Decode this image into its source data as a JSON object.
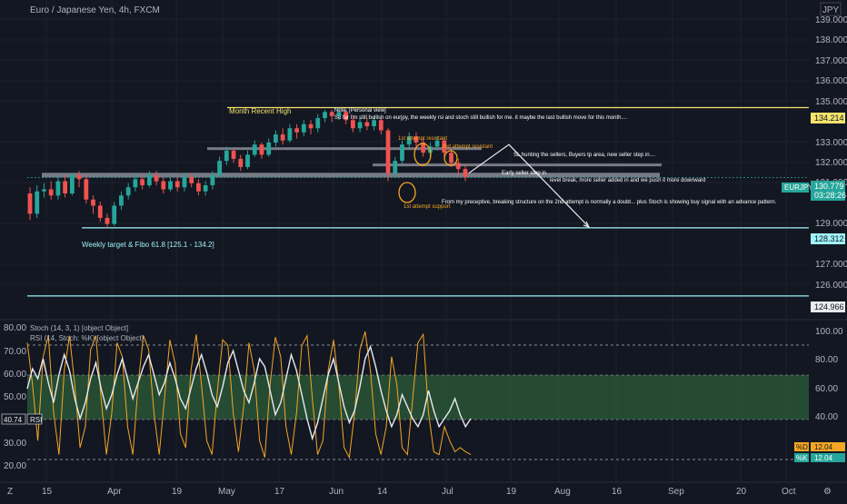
{
  "header": {
    "symbol_title": "Euro / Japanese Yen, 4h, FXCM",
    "currency_label": "JPY"
  },
  "colors": {
    "background": "#131722",
    "up_candle": "#26a69a",
    "down_candle": "#ef5350",
    "yellow_line": "#f5e36b",
    "cyan_line": "#9ff2f8",
    "white_line": "#e8eaed",
    "grey_zone": "#787b86",
    "orange": "#f5a623",
    "green_band": "#2e5d3a",
    "price_tag": "#26a69a"
  },
  "time_axis": {
    "labels": [
      "15",
      "Apr",
      "19",
      "May",
      "17",
      "Jun",
      "14",
      "Jul",
      "19",
      "Aug",
      "16",
      "Sep",
      "20",
      "Oct"
    ]
  },
  "main_chart": {
    "price_axis": {
      "labels": [
        "139.000",
        "138.000",
        "137.000",
        "136.000",
        "135.000",
        "133.000",
        "132.000",
        "131.000",
        "129.000",
        "127.000",
        "126.000"
      ]
    },
    "price_tags": {
      "month_high": "134.214",
      "weekly_target": "128.312",
      "lower_level": "124.966",
      "current_price": "130.779",
      "countdown": "03:28:26",
      "symbol": "EURJPY"
    },
    "annotations": {
      "month_recent_high": "Month Recent High",
      "weekly_target": "Weekly target & Fibo 61.8 [125.1 - 134.2]",
      "note_line1": "Note: [Personal view]",
      "note_line2": "So far I'm still bullish on eurjpy, the weekly rsi and stoch still bullish for me. it maybe the last bullish move for this month....",
      "first_resistant": "1st attempt resistant",
      "second_resistant": "2nd attempt resistant",
      "first_support": "1st attempt support",
      "sl_hunting": "SL hunting the sellers, Buyers tp area, new seller step in....",
      "early_seller": "Early seller step in",
      "level_break": "level break, more seller added in and we push it more downward",
      "preceptive": "From my preceptive, breaking structure on the 2nd attempt is normally a doubt... plus Stoch is showing buy signal with an advance pattern."
    },
    "candles": [
      [
        130.0,
        129.0,
        128.7,
        130.3
      ],
      [
        129.0,
        130.1,
        128.8,
        130.4
      ],
      [
        130.1,
        130.2,
        129.8,
        130.5
      ],
      [
        130.2,
        129.9,
        129.7,
        130.6
      ],
      [
        129.9,
        130.6,
        129.7,
        130.8
      ],
      [
        130.6,
        130.0,
        129.8,
        130.9
      ],
      [
        130.0,
        130.9,
        129.9,
        131.0
      ],
      [
        130.9,
        130.7,
        130.3,
        131.1
      ],
      [
        130.7,
        129.7,
        129.5,
        130.9
      ],
      [
        129.7,
        129.4,
        129.0,
        129.9
      ],
      [
        129.4,
        128.8,
        128.6,
        129.6
      ],
      [
        128.8,
        128.5,
        128.3,
        129.0
      ],
      [
        128.5,
        129.4,
        128.4,
        129.6
      ],
      [
        129.4,
        129.9,
        129.2,
        130.1
      ],
      [
        129.9,
        130.3,
        129.7,
        130.5
      ],
      [
        130.3,
        130.7,
        130.1,
        130.9
      ],
      [
        130.7,
        130.4,
        130.2,
        130.9
      ],
      [
        130.4,
        130.9,
        130.3,
        131.1
      ],
      [
        130.9,
        130.6,
        130.4,
        131.1
      ],
      [
        130.6,
        130.2,
        130.0,
        130.8
      ],
      [
        130.2,
        130.6,
        130.1,
        130.8
      ],
      [
        130.6,
        130.3,
        130.1,
        130.8
      ],
      [
        130.3,
        130.8,
        130.1,
        131.0
      ],
      [
        130.8,
        130.5,
        130.3,
        131.0
      ],
      [
        130.5,
        130.1,
        129.9,
        130.7
      ],
      [
        130.1,
        130.4,
        129.9,
        130.6
      ],
      [
        130.4,
        130.9,
        130.2,
        131.1
      ],
      [
        130.9,
        131.6,
        130.8,
        131.8
      ],
      [
        131.6,
        132.1,
        131.4,
        132.3
      ],
      [
        132.1,
        131.7,
        131.5,
        132.2
      ],
      [
        131.7,
        131.3,
        131.1,
        131.9
      ],
      [
        131.3,
        131.9,
        131.2,
        132.1
      ],
      [
        131.9,
        132.4,
        131.8,
        132.6
      ],
      [
        132.4,
        131.9,
        131.7,
        132.5
      ],
      [
        131.9,
        132.5,
        131.8,
        132.7
      ],
      [
        132.5,
        132.9,
        132.3,
        133.1
      ],
      [
        132.9,
        132.6,
        132.4,
        133.2
      ],
      [
        132.6,
        133.2,
        132.5,
        133.4
      ],
      [
        133.2,
        133.0,
        132.7,
        133.4
      ],
      [
        133.0,
        133.4,
        132.8,
        133.6
      ],
      [
        133.4,
        133.2,
        132.9,
        133.6
      ],
      [
        133.2,
        133.7,
        133.0,
        133.9
      ],
      [
        133.7,
        134.0,
        133.5,
        134.1
      ],
      [
        134.0,
        133.8,
        133.5,
        134.1
      ],
      [
        133.8,
        134.0,
        133.6,
        134.2
      ],
      [
        134.0,
        133.6,
        133.4,
        134.1
      ],
      [
        133.6,
        133.2,
        133.0,
        133.8
      ],
      [
        133.2,
        133.5,
        133.0,
        133.7
      ],
      [
        133.5,
        133.3,
        133.1,
        133.7
      ],
      [
        133.3,
        133.6,
        133.1,
        133.8
      ],
      [
        133.6,
        133.1,
        132.9,
        133.7
      ],
      [
        133.1,
        131.0,
        130.6,
        133.2
      ],
      [
        131.0,
        131.6,
        130.8,
        131.8
      ],
      [
        131.6,
        132.4,
        131.4,
        132.6
      ],
      [
        132.4,
        132.8,
        132.2,
        133.0
      ],
      [
        132.8,
        132.5,
        132.3,
        133.0
      ],
      [
        132.5,
        132.0,
        131.8,
        132.7
      ],
      [
        132.0,
        132.3,
        131.8,
        132.5
      ],
      [
        132.3,
        132.6,
        132.1,
        132.8
      ],
      [
        132.6,
        132.0,
        131.8,
        132.7
      ],
      [
        132.0,
        131.5,
        131.3,
        132.2
      ],
      [
        131.5,
        131.2,
        130.9,
        131.7
      ],
      [
        131.2,
        130.8,
        130.6,
        131.4
      ]
    ],
    "projection_path": [
      [
        131.0,
        0.0
      ],
      [
        132.4,
        0.0
      ],
      [
        128.35,
        0.0
      ]
    ],
    "levels": {
      "month_high": 134.214,
      "resistance_zone": 132.2,
      "minor_resistance": 131.4,
      "support_zone": 130.9,
      "weekly_target": 128.312,
      "lower_level": 124.966,
      "current_price": 130.779
    },
    "price_range": [
      123.8,
      139.5
    ]
  },
  "indicator": {
    "title_line1": "Stoch (14, 3, 1) [object Object]",
    "title_line2": "RSI (14, Stoch: %K) [object Object]",
    "rsi_value": "40.74",
    "rsi_label": "RSI",
    "stoch_d_label": "%D",
    "stoch_d_value": "12.04",
    "stoch_k_label": "%K",
    "stoch_k_value": "12.04",
    "left_axis_labels": [
      "80.00",
      "70.00",
      "60.00",
      "50.00",
      "40.00",
      "30.00",
      "20.00"
    ],
    "right_axis_labels": [
      "100.00",
      "80.00",
      "60.00",
      "40.00",
      "20.00"
    ],
    "rsi_values": [
      55,
      65,
      60,
      70,
      58,
      48,
      62,
      72,
      64,
      50,
      40,
      48,
      60,
      68,
      55,
      45,
      52,
      62,
      70,
      60,
      50,
      58,
      66,
      72,
      62,
      52,
      58,
      68,
      60,
      50,
      45,
      55,
      65,
      72,
      63,
      52,
      46,
      56,
      68,
      74,
      64,
      54,
      48,
      58,
      70,
      66,
      54,
      42,
      48,
      60,
      72,
      64,
      52,
      40,
      30,
      38,
      50,
      62,
      70,
      58,
      46,
      38,
      44,
      56,
      70,
      76,
      66,
      54,
      44,
      36,
      42,
      52,
      46,
      40,
      36,
      42,
      54,
      44,
      36,
      40,
      44,
      50,
      42,
      36,
      40
    ],
    "stoch_values": [
      90,
      60,
      20,
      80,
      95,
      40,
      10,
      70,
      95,
      60,
      15,
      30,
      85,
      95,
      50,
      10,
      40,
      90,
      80,
      30,
      10,
      60,
      95,
      85,
      40,
      10,
      50,
      92,
      75,
      25,
      15,
      70,
      96,
      60,
      20,
      10,
      55,
      92,
      88,
      40,
      12,
      45,
      90,
      70,
      20,
      8,
      60,
      94,
      80,
      30,
      10,
      40,
      88,
      95,
      50,
      10,
      20,
      70,
      92,
      60,
      15,
      8,
      40,
      85,
      98,
      70,
      25,
      10,
      30,
      80,
      60,
      15,
      10,
      50,
      90,
      96,
      40,
      12,
      10,
      30,
      20,
      12,
      15,
      12,
      10
    ]
  }
}
